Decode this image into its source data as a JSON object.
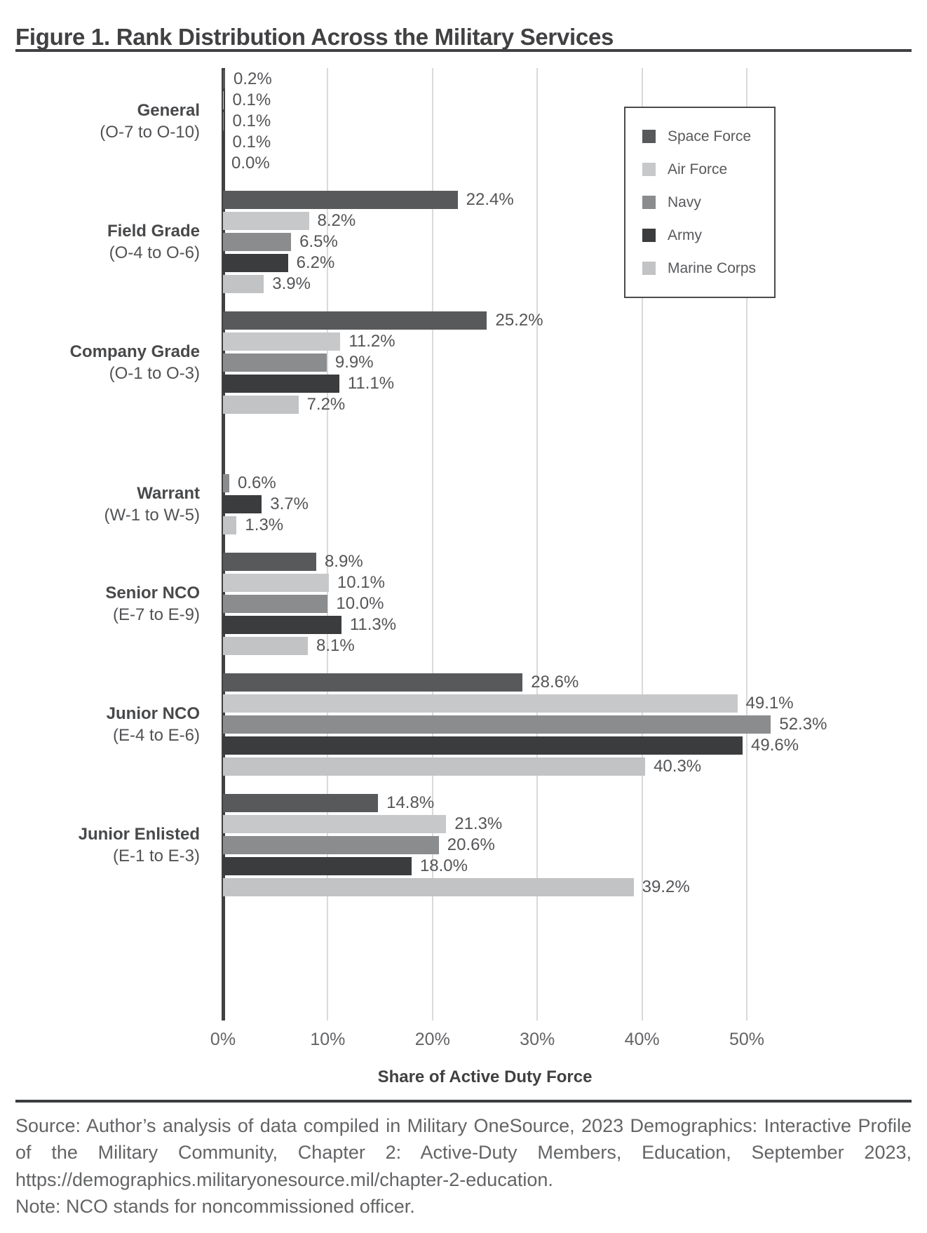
{
  "title": "Figure 1. Rank Distribution Across the Military Services",
  "chart_data": {
    "type": "bar",
    "orientation": "horizontal",
    "title": "Figure 1. Rank Distribution Across the Military Services",
    "xlabel": "Share of Active Duty Force",
    "ylabel": "",
    "xlim": [
      0,
      66.9
    ],
    "x_ticks": [
      "0%",
      "10%",
      "20%",
      "30%",
      "40%",
      "50%"
    ],
    "x_tick_values": [
      0,
      10,
      20,
      30,
      40,
      50
    ],
    "grid": "vertical",
    "legend_position": "top-right",
    "series": [
      {
        "name": "Space Force",
        "color": "#58595b"
      },
      {
        "name": "Air Force",
        "color": "#c7c8ca"
      },
      {
        "name": "Navy",
        "color": "#8a8c8e"
      },
      {
        "name": "Army",
        "color": "#3b3c3e"
      },
      {
        "name": "Marine Corps",
        "color": "#c2c3c5"
      }
    ],
    "groups": [
      {
        "category": "General",
        "range": "(O-7 to O-10)",
        "values": [
          0.2,
          0.1,
          0.1,
          0.1,
          0.0
        ],
        "labels": [
          "0.2%",
          "0.1%",
          "0.1%",
          "0.1%",
          "0.0%"
        ]
      },
      {
        "category": "Field Grade",
        "range": "(O-4 to O-6)",
        "values": [
          22.4,
          8.2,
          6.5,
          6.2,
          3.9
        ],
        "labels": [
          "22.4%",
          "8.2%",
          "6.5%",
          "6.2%",
          "3.9%"
        ]
      },
      {
        "category": "Company Grade",
        "range": "(O-1 to O-3)",
        "values": [
          25.2,
          11.2,
          9.9,
          11.1,
          7.2
        ],
        "labels": [
          "25.2%",
          "11.2%",
          "9.9%",
          "11.1%",
          "7.2%"
        ]
      },
      {
        "category": "Warrant",
        "range": "(W-1 to W-5)",
        "values": [
          null,
          null,
          0.6,
          3.7,
          1.3
        ],
        "labels": [
          null,
          null,
          "0.6%",
          "3.7%",
          "1.3%"
        ]
      },
      {
        "category": "Senior NCO",
        "range": "(E-7 to E-9)",
        "values": [
          8.9,
          10.1,
          10.0,
          11.3,
          8.1
        ],
        "labels": [
          "8.9%",
          "10.1%",
          "10.0%",
          "11.3%",
          "8.1%"
        ]
      },
      {
        "category": "Junior NCO",
        "range": "(E-4 to E-6)",
        "values": [
          28.6,
          49.1,
          52.3,
          49.6,
          40.3
        ],
        "labels": [
          "28.6%",
          "49.1%",
          "52.3%",
          "49.6%",
          "40.3%"
        ]
      },
      {
        "category": "Junior Enlisted",
        "range": "(E-1 to E-3)",
        "values": [
          14.8,
          21.3,
          20.6,
          18.0,
          39.2
        ],
        "labels": [
          "14.8%",
          "21.3%",
          "20.6%",
          "18.0%",
          "39.2%"
        ]
      }
    ]
  },
  "footer": {
    "source": "Source: Author’s analysis of data compiled in Military OneSource, 2023 Demographics: Interactive Profile of the Military Community, Chapter 2: Active-Duty Members, Education, September 2023, https://demographics.militaryonesource.mil/chapter-2-education.",
    "note": "Note: NCO stands for noncommissioned officer."
  },
  "colors": {
    "title_text": "#414042",
    "axis": "#414042",
    "gridline": "#d9dadb",
    "value_label": "#545557",
    "footer_text": "#636466"
  }
}
